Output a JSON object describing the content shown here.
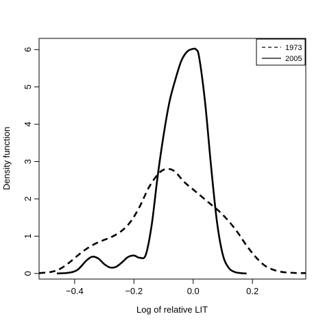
{
  "chart_data": {
    "type": "line",
    "title": "",
    "xlabel": "Log of relative LIT",
    "ylabel": "Density function",
    "xlim": [
      -0.52,
      0.38
    ],
    "ylim": [
      -0.15,
      6.3
    ],
    "xticks": [
      -0.4,
      -0.2,
      0.0,
      0.2
    ],
    "xtick_labels": [
      "−0.4",
      "−0.2",
      "0.0",
      "0.2"
    ],
    "yticks": [
      0,
      1,
      2,
      3,
      4,
      5,
      6
    ],
    "ytick_labels": [
      "0",
      "1",
      "2",
      "3",
      "4",
      "5",
      "6"
    ],
    "legend_position": "top-right",
    "grid": false,
    "series": [
      {
        "name": "1973",
        "style": "dashed",
        "x": [
          -0.52,
          -0.48,
          -0.45,
          -0.42,
          -0.39,
          -0.36,
          -0.33,
          -0.3,
          -0.27,
          -0.24,
          -0.21,
          -0.18,
          -0.15,
          -0.12,
          -0.1,
          -0.08,
          -0.06,
          -0.03,
          0.0,
          0.03,
          0.06,
          0.09,
          0.12,
          0.15,
          0.18,
          0.21,
          0.24,
          0.27,
          0.3,
          0.33,
          0.36,
          0.38
        ],
        "y": [
          0.01,
          0.04,
          0.12,
          0.28,
          0.48,
          0.66,
          0.8,
          0.9,
          1.0,
          1.15,
          1.4,
          1.8,
          2.3,
          2.65,
          2.78,
          2.8,
          2.72,
          2.45,
          2.25,
          2.05,
          1.85,
          1.65,
          1.4,
          1.1,
          0.75,
          0.45,
          0.22,
          0.1,
          0.04,
          0.02,
          0.01,
          0.01
        ]
      },
      {
        "name": "2005",
        "style": "solid",
        "x": [
          -0.46,
          -0.42,
          -0.39,
          -0.36,
          -0.34,
          -0.32,
          -0.3,
          -0.28,
          -0.26,
          -0.24,
          -0.22,
          -0.2,
          -0.18,
          -0.16,
          -0.14,
          -0.12,
          -0.1,
          -0.08,
          -0.06,
          -0.04,
          -0.02,
          0.0,
          0.01,
          0.02,
          0.04,
          0.06,
          0.08,
          0.1,
          0.12,
          0.14,
          0.16,
          0.18
        ],
        "y": [
          0.0,
          0.02,
          0.1,
          0.35,
          0.45,
          0.4,
          0.25,
          0.16,
          0.18,
          0.3,
          0.44,
          0.48,
          0.42,
          0.5,
          1.3,
          2.6,
          3.7,
          4.6,
          5.2,
          5.7,
          5.95,
          6.02,
          6.0,
          5.8,
          4.6,
          2.9,
          1.4,
          0.5,
          0.15,
          0.04,
          0.01,
          0.0
        ]
      }
    ]
  }
}
